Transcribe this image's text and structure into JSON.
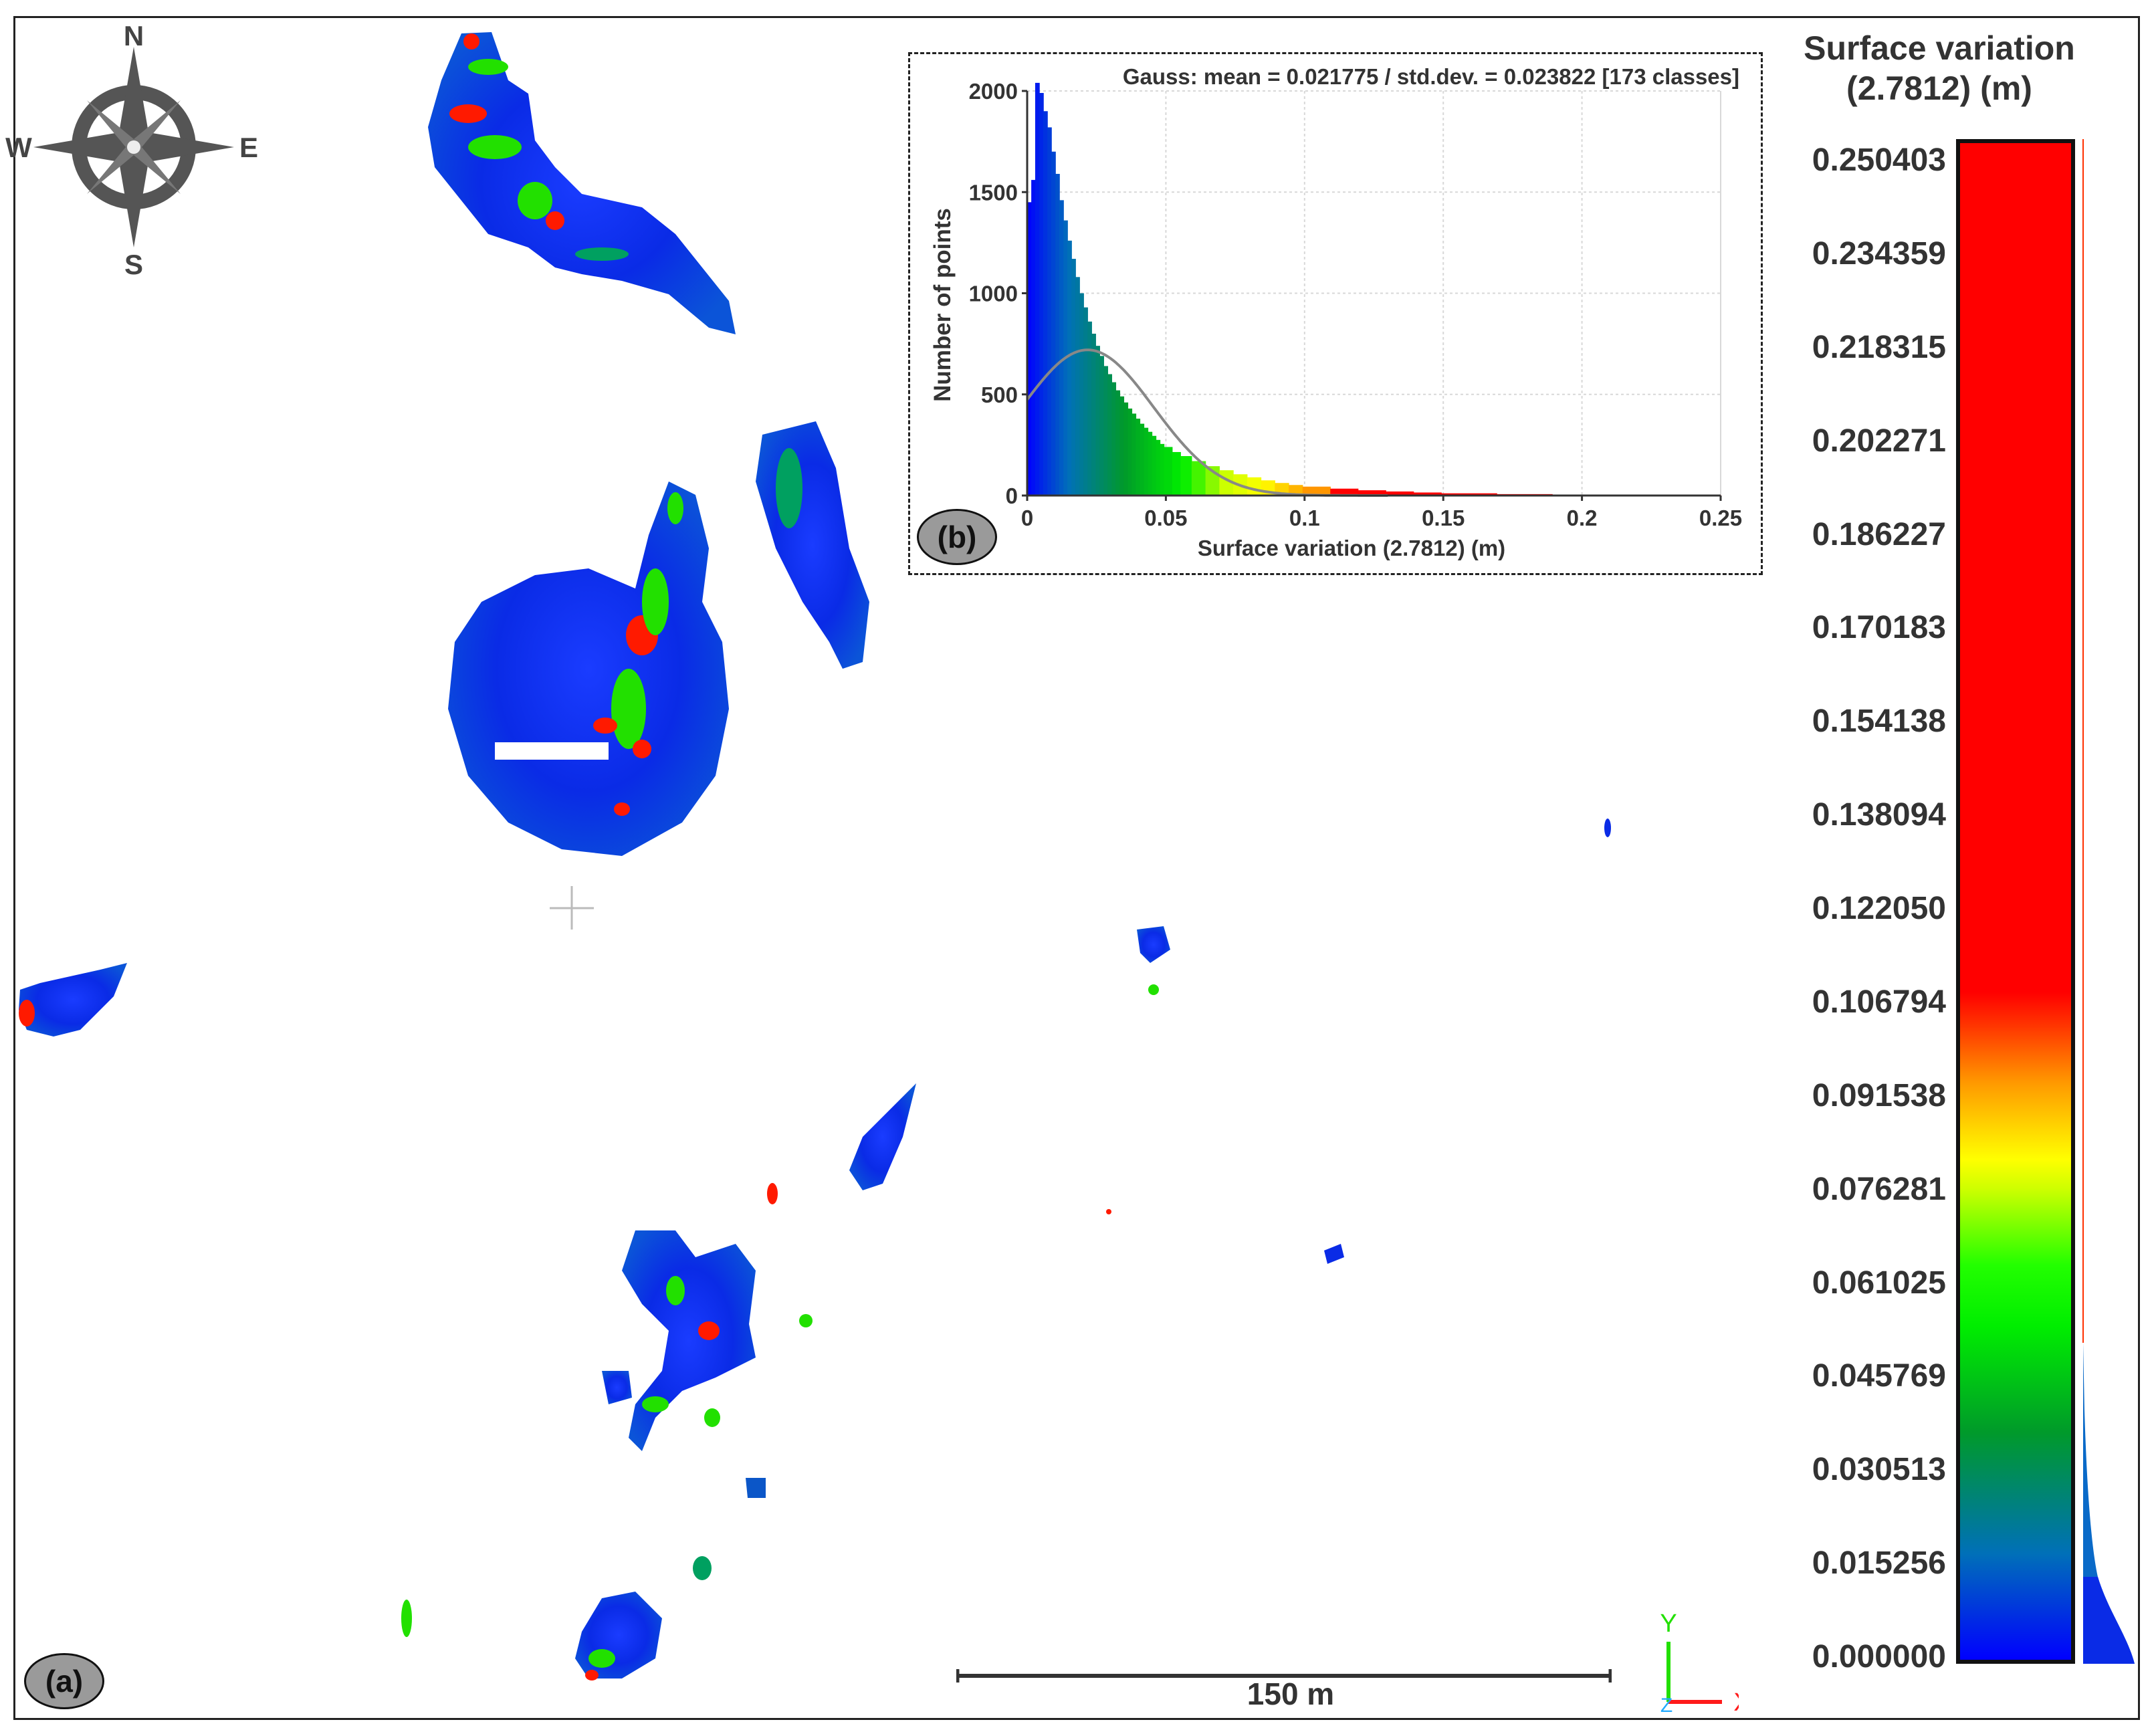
{
  "compass": {
    "north": "N",
    "south": "S",
    "east": "E",
    "west": "W"
  },
  "panel_labels": {
    "map": "(a)",
    "histogram": "(b)"
  },
  "scale_bar": {
    "label": "150 m"
  },
  "axis_triad": {
    "x": "X",
    "y": "Y",
    "z": "Z"
  },
  "colorbar": {
    "title_line1": "Surface variation",
    "title_line2": "(2.7812) (m)",
    "ticks": [
      "0.250403",
      "0.234359",
      "0.218315",
      "0.202271",
      "0.186227",
      "0.170183",
      "0.154138",
      "0.138094",
      "0.122050",
      "0.106794",
      "0.091538",
      "0.076281",
      "0.061025",
      "0.045769",
      "0.030513",
      "0.015256",
      "0.000000"
    ]
  },
  "colors": {
    "low": "#0000ff",
    "mid_low": "#00c800",
    "mid": "#ffff00",
    "high": "#ff0000",
    "gauss_curve": "#888888"
  },
  "chart_data": {
    "type": "bar",
    "title": "Gauss: mean = 0.021775 / std.dev. = 0.023822 [173 classes]",
    "xlabel": "Surface variation (2.7812) (m)",
    "ylabel": "Number of points",
    "xlim": [
      0,
      0.25
    ],
    "ylim": [
      0,
      2000
    ],
    "xticks": [
      "0",
      "0.05",
      "0.1",
      "0.15",
      "0.2",
      "0.25"
    ],
    "yticks": [
      "0",
      "500",
      "1000",
      "1500",
      "2000"
    ],
    "grid": true,
    "gauss": {
      "mean": 0.021775,
      "std_dev": 0.023822,
      "peak": 720
    },
    "bin_width": 0.00145,
    "x": [
      0.0007,
      0.0022,
      0.0036,
      0.0051,
      0.0065,
      0.008,
      0.0094,
      0.0109,
      0.0123,
      0.0138,
      0.0152,
      0.0167,
      0.0181,
      0.0196,
      0.021,
      0.0225,
      0.0239,
      0.0254,
      0.0268,
      0.0283,
      0.0297,
      0.0312,
      0.0326,
      0.0341,
      0.0355,
      0.037,
      0.0384,
      0.0399,
      0.0413,
      0.0428,
      0.0442,
      0.0457,
      0.0471,
      0.0486,
      0.05,
      0.053,
      0.056,
      0.06,
      0.065,
      0.07,
      0.075,
      0.08,
      0.085,
      0.09,
      0.095,
      0.1,
      0.11,
      0.12,
      0.13,
      0.14,
      0.15,
      0.17,
      0.19,
      0.21,
      0.23,
      0.25
    ],
    "values": [
      1450,
      1560,
      2080,
      1990,
      1900,
      1820,
      1700,
      1590,
      1460,
      1360,
      1260,
      1170,
      1080,
      1000,
      930,
      860,
      800,
      740,
      690,
      640,
      600,
      560,
      520,
      490,
      460,
      430,
      405,
      380,
      355,
      335,
      315,
      295,
      275,
      255,
      240,
      215,
      195,
      170,
      145,
      125,
      105,
      90,
      75,
      62,
      52,
      44,
      34,
      26,
      20,
      15,
      11,
      7,
      4,
      3,
      2,
      1
    ]
  }
}
